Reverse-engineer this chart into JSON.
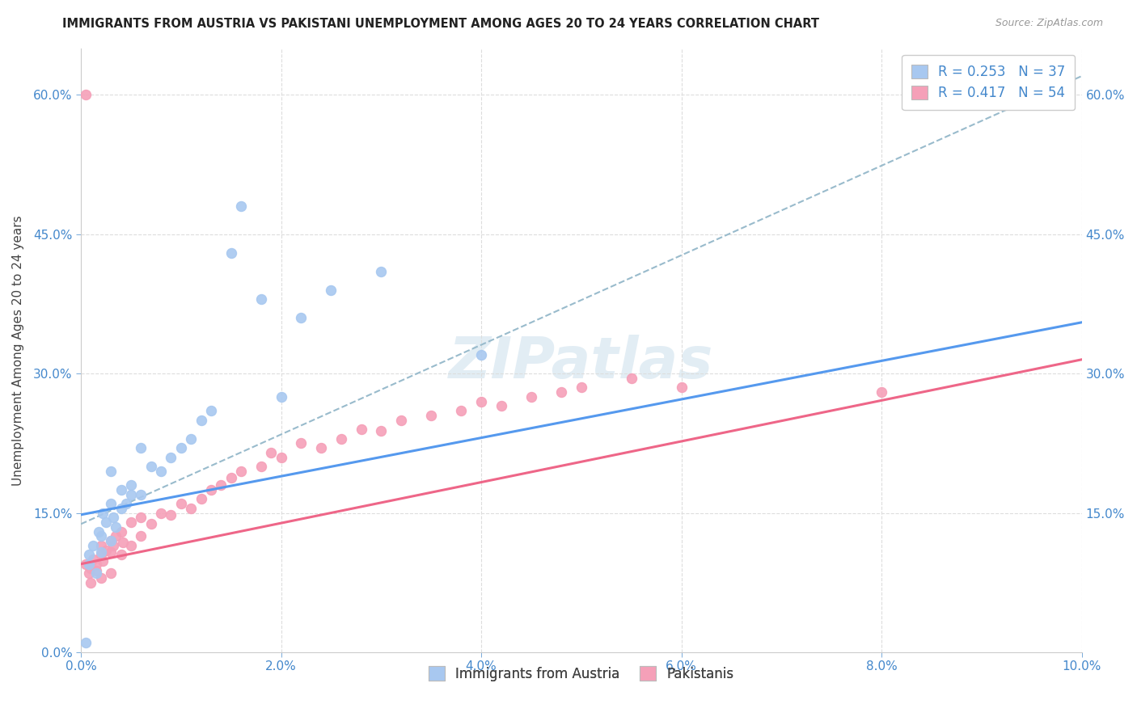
{
  "title": "IMMIGRANTS FROM AUSTRIA VS PAKISTANI UNEMPLOYMENT AMONG AGES 20 TO 24 YEARS CORRELATION CHART",
  "source": "Source: ZipAtlas.com",
  "ylabel": "Unemployment Among Ages 20 to 24 years",
  "xlim": [
    0.0,
    0.1
  ],
  "ylim": [
    0.0,
    0.65
  ],
  "austria_R": 0.253,
  "austria_N": 37,
  "pakistan_R": 0.417,
  "pakistan_N": 54,
  "austria_color": "#a8c8f0",
  "pakistan_color": "#f5a0b8",
  "austria_line_color": "#5599ee",
  "pakistan_line_color": "#ee6688",
  "dashed_line_color": "#99bbcc",
  "legend_labels": [
    "Immigrants from Austria",
    "Pakistanis"
  ],
  "austria_line_x0": 0.0,
  "austria_line_y0": 0.148,
  "austria_line_x1": 0.1,
  "austria_line_y1": 0.355,
  "pakistan_line_x0": 0.0,
  "pakistan_line_y0": 0.095,
  "pakistan_line_x1": 0.1,
  "pakistan_line_y1": 0.315,
  "dashed_line_x0": 0.0,
  "dashed_line_y0": 0.138,
  "dashed_line_x1": 0.1,
  "dashed_line_y1": 0.62,
  "austria_scatter_x": [
    0.0008,
    0.0008,
    0.0012,
    0.0015,
    0.0018,
    0.002,
    0.002,
    0.0022,
    0.0025,
    0.003,
    0.003,
    0.003,
    0.0032,
    0.0035,
    0.004,
    0.004,
    0.0045,
    0.005,
    0.005,
    0.006,
    0.006,
    0.007,
    0.008,
    0.009,
    0.01,
    0.011,
    0.012,
    0.013,
    0.015,
    0.016,
    0.018,
    0.02,
    0.022,
    0.025,
    0.03,
    0.04,
    0.0005
  ],
  "austria_scatter_y": [
    0.095,
    0.105,
    0.115,
    0.085,
    0.13,
    0.108,
    0.125,
    0.15,
    0.14,
    0.12,
    0.16,
    0.195,
    0.145,
    0.135,
    0.155,
    0.175,
    0.16,
    0.17,
    0.18,
    0.17,
    0.22,
    0.2,
    0.195,
    0.21,
    0.22,
    0.23,
    0.25,
    0.26,
    0.43,
    0.48,
    0.38,
    0.275,
    0.36,
    0.39,
    0.41,
    0.32,
    0.01
  ],
  "pakistan_scatter_x": [
    0.0005,
    0.0008,
    0.001,
    0.001,
    0.0012,
    0.0015,
    0.0015,
    0.002,
    0.002,
    0.002,
    0.0022,
    0.0025,
    0.003,
    0.003,
    0.003,
    0.0032,
    0.0035,
    0.004,
    0.004,
    0.0042,
    0.005,
    0.005,
    0.006,
    0.006,
    0.007,
    0.008,
    0.009,
    0.01,
    0.011,
    0.012,
    0.013,
    0.014,
    0.015,
    0.016,
    0.018,
    0.019,
    0.02,
    0.022,
    0.024,
    0.026,
    0.028,
    0.03,
    0.032,
    0.035,
    0.038,
    0.04,
    0.042,
    0.045,
    0.048,
    0.05,
    0.055,
    0.06,
    0.08,
    0.0005
  ],
  "pakistan_scatter_y": [
    0.095,
    0.085,
    0.075,
    0.09,
    0.1,
    0.088,
    0.095,
    0.08,
    0.105,
    0.115,
    0.098,
    0.11,
    0.085,
    0.12,
    0.108,
    0.115,
    0.125,
    0.105,
    0.13,
    0.118,
    0.115,
    0.14,
    0.125,
    0.145,
    0.138,
    0.15,
    0.148,
    0.16,
    0.155,
    0.165,
    0.175,
    0.18,
    0.188,
    0.195,
    0.2,
    0.215,
    0.21,
    0.225,
    0.22,
    0.23,
    0.24,
    0.238,
    0.25,
    0.255,
    0.26,
    0.27,
    0.265,
    0.275,
    0.28,
    0.285,
    0.295,
    0.285,
    0.28,
    0.6
  ]
}
